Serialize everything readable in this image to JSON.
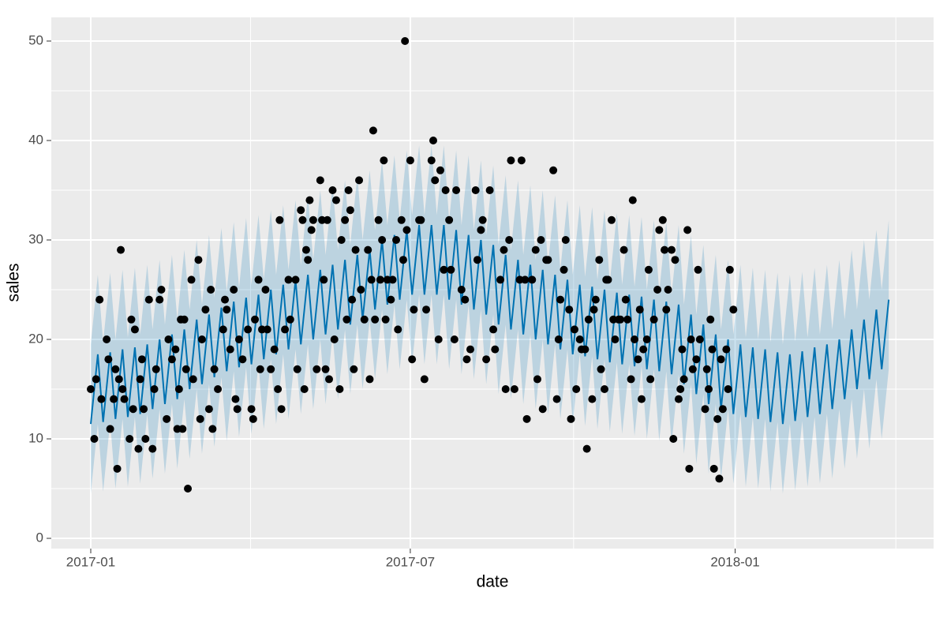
{
  "chart_data": {
    "type": "forecast",
    "x_label": "date",
    "y_label": "sales",
    "xlim": [
      -22.35,
      477.4
    ],
    "ylim": [
      -1.03,
      52.38
    ],
    "xticks": [
      {
        "value": 0,
        "label": "2017-01"
      },
      {
        "value": 181,
        "label": "2017-07"
      },
      {
        "value": 365,
        "label": "2018-01"
      }
    ],
    "xminor": [
      90.5,
      273.5,
      456
    ],
    "yticks": [
      0,
      10,
      20,
      30,
      40,
      50
    ],
    "yminor": [
      5,
      15,
      25,
      35,
      45
    ],
    "grid": true,
    "forecast": {
      "color": "#0072B2",
      "x": [
        0,
        4,
        7,
        11,
        14,
        18,
        21,
        25,
        28,
        32,
        35,
        39,
        42,
        46,
        49,
        53,
        56,
        60,
        63,
        67,
        70,
        74,
        77,
        81,
        84,
        88,
        91,
        95,
        98,
        102,
        105,
        109,
        112,
        116,
        119,
        123,
        126,
        130,
        133,
        137,
        140,
        144,
        147,
        151,
        154,
        158,
        161,
        165,
        168,
        172,
        175,
        179,
        182,
        186,
        189,
        193,
        196,
        200,
        203,
        207,
        210,
        214,
        217,
        221,
        224,
        228,
        231,
        235,
        238,
        242,
        245,
        249,
        252,
        256,
        259,
        263,
        266,
        270,
        273,
        277,
        280,
        284,
        287,
        291,
        294,
        298,
        301,
        305,
        308,
        312,
        315,
        319,
        322,
        326,
        329,
        333,
        336,
        340,
        343,
        347,
        350,
        354,
        357,
        361,
        364,
        368,
        371,
        375,
        378,
        382,
        385,
        389,
        392,
        396,
        399,
        403,
        406,
        410,
        413,
        417,
        420,
        424,
        427,
        431,
        434,
        438,
        441,
        445,
        448,
        452
      ],
      "values": [
        11.5,
        18.5,
        11.7,
        18.7,
        12,
        19,
        12.2,
        19.2,
        12.5,
        19.5,
        13,
        20,
        13.5,
        20.5,
        14,
        21,
        15,
        22,
        15.5,
        22.5,
        16.2,
        23.2,
        16.8,
        23.8,
        17.2,
        24.2,
        17.5,
        24.5,
        18,
        25,
        18.5,
        25.5,
        19,
        26,
        19.5,
        26.5,
        20,
        27,
        20.5,
        27.5,
        21,
        28,
        21.5,
        28.5,
        22,
        29,
        23,
        30,
        23.5,
        30.5,
        24,
        31,
        24.5,
        31.5,
        24.5,
        31.5,
        24.5,
        31.5,
        24,
        31,
        23.5,
        30.5,
        23,
        30,
        22.5,
        29.5,
        21.5,
        28.5,
        21,
        28,
        20.5,
        27.5,
        20,
        27,
        19.5,
        26.5,
        19,
        26,
        18.5,
        25.5,
        18.3,
        25.3,
        18,
        25,
        17.7,
        24.7,
        17.5,
        24.5,
        17.3,
        24.3,
        17,
        24,
        16.8,
        23.8,
        16.5,
        23.5,
        15.5,
        22.5,
        14.5,
        21.5,
        13.5,
        20.5,
        13,
        20,
        12.5,
        19.5,
        12.2,
        19.2,
        12,
        19,
        11.7,
        18.7,
        11.5,
        18.5,
        11.8,
        18.8,
        12.2,
        19.2,
        12.5,
        19.5,
        13,
        20,
        14,
        21,
        15,
        22,
        16,
        23,
        17,
        24
      ],
      "lower": [
        4.5,
        11.5,
        4.7,
        11.7,
        5,
        12,
        5.2,
        12.2,
        5.5,
        12.5,
        6,
        13,
        6.5,
        13.5,
        7,
        14,
        8,
        15,
        8.5,
        15.5,
        9.2,
        16.2,
        9.8,
        16.8,
        10.2,
        17.2,
        10.5,
        17.5,
        11,
        18,
        11.5,
        18.5,
        12,
        19,
        12.5,
        19.5,
        13,
        20,
        13.5,
        20.5,
        14,
        21,
        14.5,
        21.5,
        15,
        22,
        16,
        23,
        16.5,
        23.5,
        17,
        24,
        17.5,
        24.5,
        17.5,
        24.5,
        17.5,
        24.5,
        17,
        24,
        16.5,
        23.5,
        16,
        23,
        15.5,
        22.5,
        14.5,
        21.5,
        14,
        21,
        13.5,
        20.5,
        13,
        20,
        12.5,
        19.5,
        12,
        19,
        11.5,
        18.5,
        11.3,
        18.3,
        11,
        18,
        10.7,
        17.7,
        10.5,
        17.5,
        10.3,
        17.3,
        10,
        17,
        9.8,
        16.8,
        9.5,
        16.5,
        8.5,
        15.5,
        7.5,
        14.5,
        6.5,
        13.5,
        6,
        13,
        5.5,
        12.5,
        5.2,
        12.2,
        5,
        12,
        4.7,
        11.7,
        4.5,
        11.5,
        4.8,
        11.8,
        5.2,
        12.2,
        5.5,
        12.5,
        6,
        13,
        7,
        14,
        8,
        15,
        9,
        16,
        10,
        17
      ],
      "upper": [
        19.5,
        26.5,
        19.7,
        26.7,
        20,
        27,
        20.2,
        27.2,
        20.5,
        27.5,
        21,
        28,
        21.5,
        28.5,
        22,
        29,
        23,
        30,
        23.5,
        30.5,
        24.2,
        31.2,
        24.8,
        31.8,
        25.2,
        32.2,
        25.5,
        32.5,
        26,
        33,
        26.5,
        33.5,
        27,
        34,
        27.5,
        34.5,
        28,
        35,
        28.5,
        35.5,
        29,
        36,
        29.5,
        36.5,
        30,
        37,
        31,
        38,
        31.5,
        38.5,
        32,
        39,
        32.5,
        39.5,
        32.5,
        39.5,
        32.5,
        39.5,
        32,
        39,
        31.5,
        38.5,
        31,
        38,
        30.5,
        37.5,
        29.5,
        36.5,
        29,
        36,
        28.5,
        35.5,
        28,
        35,
        27.5,
        34.5,
        27,
        34,
        26.5,
        33.5,
        26.3,
        33.3,
        26,
        33,
        25.7,
        32.7,
        25.5,
        32.5,
        25.3,
        32.3,
        25,
        32,
        24.8,
        31.8,
        24.5,
        31.5,
        23.5,
        30.5,
        22.5,
        29.5,
        21.5,
        28.5,
        21,
        28,
        20.5,
        27.5,
        20.2,
        27.2,
        20,
        27,
        19.7,
        26.7,
        19.5,
        26.5,
        19.8,
        26.8,
        20.2,
        27.2,
        20.5,
        27.5,
        21,
        28,
        22,
        29,
        23,
        30,
        24,
        31,
        25,
        32
      ]
    },
    "points": {
      "color": "#000000",
      "x": [
        0,
        2,
        3,
        5,
        6,
        9,
        10,
        11,
        13,
        14,
        15,
        16,
        17,
        18,
        19,
        22,
        23,
        24,
        25,
        27,
        28,
        29,
        30,
        31,
        33,
        35,
        36,
        37,
        39,
        40,
        43,
        44,
        46,
        48,
        49,
        50,
        51,
        52,
        53,
        54,
        55,
        57,
        58,
        61,
        62,
        63,
        65,
        67,
        68,
        69,
        70,
        72,
        75,
        76,
        77,
        79,
        81,
        82,
        83,
        84,
        86,
        89,
        91,
        92,
        93,
        95,
        96,
        97,
        99,
        100,
        102,
        104,
        106,
        107,
        108,
        110,
        112,
        113,
        116,
        117,
        119,
        120,
        121,
        122,
        123,
        124,
        125,
        126,
        128,
        130,
        131,
        132,
        133,
        134,
        135,
        137,
        138,
        139,
        141,
        142,
        144,
        145,
        146,
        147,
        148,
        149,
        150,
        152,
        153,
        155,
        157,
        158,
        159,
        160,
        161,
        163,
        164,
        165,
        166,
        167,
        168,
        170,
        171,
        173,
        174,
        176,
        177,
        178,
        179,
        181,
        182,
        183,
        186,
        187,
        189,
        190,
        193,
        194,
        195,
        197,
        198,
        200,
        201,
        203,
        204,
        206,
        207,
        210,
        212,
        213,
        215,
        218,
        219,
        221,
        222,
        224,
        226,
        228,
        229,
        232,
        234,
        235,
        237,
        238,
        240,
        243,
        244,
        246,
        247,
        250,
        252,
        253,
        255,
        256,
        258,
        259,
        262,
        264,
        265,
        266,
        268,
        269,
        271,
        272,
        274,
        275,
        277,
        278,
        280,
        281,
        282,
        284,
        285,
        286,
        288,
        289,
        291,
        292,
        293,
        295,
        296,
        297,
        299,
        300,
        302,
        303,
        304,
        306,
        307,
        308,
        310,
        311,
        312,
        313,
        315,
        316,
        317,
        319,
        321,
        322,
        324,
        325,
        326,
        327,
        329,
        330,
        331,
        333,
        334,
        335,
        336,
        338,
        339,
        340,
        341,
        343,
        344,
        345,
        348,
        349,
        350,
        351,
        352,
        353,
        355,
        356,
        357,
        358,
        360,
        361,
        362,
        364
      ],
      "values": [
        15,
        10,
        16,
        24,
        14,
        20,
        18,
        11,
        14,
        17,
        7,
        16,
        29,
        15,
        14,
        10,
        22,
        13,
        21,
        9,
        16,
        18,
        13,
        10,
        24,
        9,
        15,
        17,
        24,
        25,
        12,
        20,
        18,
        19,
        11,
        15,
        22,
        11,
        22,
        17,
        5,
        26,
        16,
        28,
        12,
        20,
        23,
        13,
        25,
        11,
        17,
        15,
        21,
        24,
        23,
        19,
        25,
        14,
        13,
        20,
        18,
        21,
        13,
        12,
        22,
        26,
        17,
        21,
        25,
        21,
        17,
        19,
        15,
        32,
        13,
        21,
        26,
        22,
        26,
        17,
        33,
        32,
        15,
        29,
        28,
        34,
        31,
        32,
        17,
        36,
        32,
        26,
        17,
        32,
        16,
        35,
        20,
        34,
        15,
        30,
        32,
        22,
        35,
        33,
        24,
        17,
        29,
        36,
        25,
        22,
        29,
        16,
        26,
        41,
        22,
        32,
        26,
        30,
        38,
        22,
        26,
        24,
        26,
        30,
        21,
        32,
        28,
        50,
        31,
        38,
        18,
        23,
        32,
        32,
        16,
        23,
        38,
        40,
        36,
        20,
        37,
        27,
        35,
        32,
        27,
        20,
        35,
        25,
        24,
        18,
        19,
        35,
        28,
        31,
        32,
        18,
        35,
        21,
        19,
        26,
        29,
        15,
        30,
        38,
        15,
        26,
        38,
        26,
        12,
        26,
        29,
        16,
        30,
        13,
        28,
        28,
        37,
        14,
        20,
        24,
        27,
        30,
        23,
        12,
        21,
        15,
        20,
        19,
        19,
        9,
        22,
        14,
        23,
        24,
        28,
        17,
        15,
        26,
        26,
        32,
        22,
        20,
        22,
        22,
        29,
        24,
        22,
        16,
        34,
        20,
        18,
        23,
        14,
        19,
        20,
        27,
        16,
        22,
        25,
        31,
        32,
        29,
        23,
        25,
        29,
        10,
        28,
        14,
        15,
        19,
        16,
        31,
        7,
        20,
        17,
        18,
        27,
        20,
        13,
        17,
        15,
        22,
        19,
        7,
        12,
        6,
        18,
        13,
        19,
        15,
        27,
        23
      ]
    }
  }
}
